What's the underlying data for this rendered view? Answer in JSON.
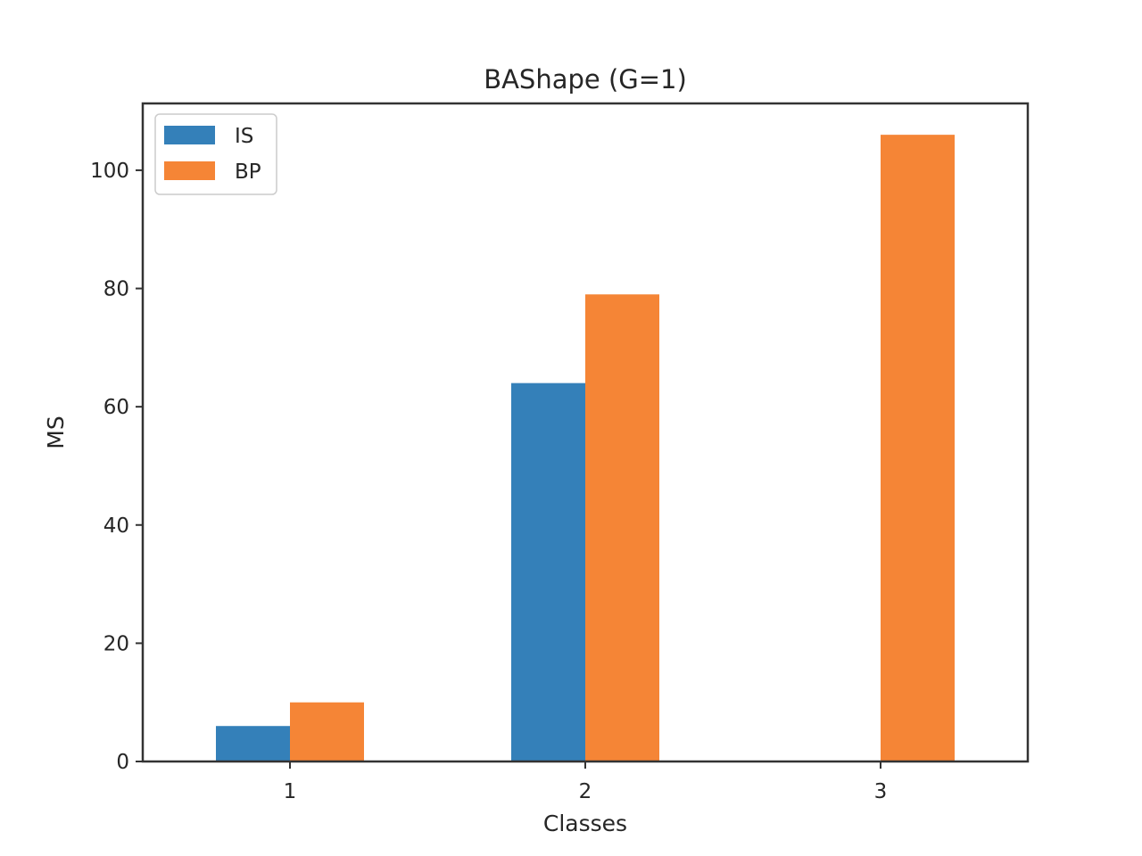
{
  "chart_data": {
    "type": "bar",
    "title": "BAShape (G=1)",
    "xlabel": "Classes",
    "ylabel": "MS",
    "categories": [
      "1",
      "2",
      "3"
    ],
    "series": [
      {
        "name": "IS",
        "values": [
          6,
          64,
          0
        ],
        "color": "#3480b9"
      },
      {
        "name": "BP",
        "values": [
          10,
          79,
          106
        ],
        "color": "#f58536"
      }
    ],
    "ylim": [
      0,
      111.3
    ],
    "yticks": [
      0,
      20,
      40,
      60,
      80,
      100
    ],
    "ytick_labels": [
      "0",
      "20",
      "40",
      "60",
      "80",
      "100"
    ],
    "grid": false,
    "legend_position": "upper left"
  }
}
